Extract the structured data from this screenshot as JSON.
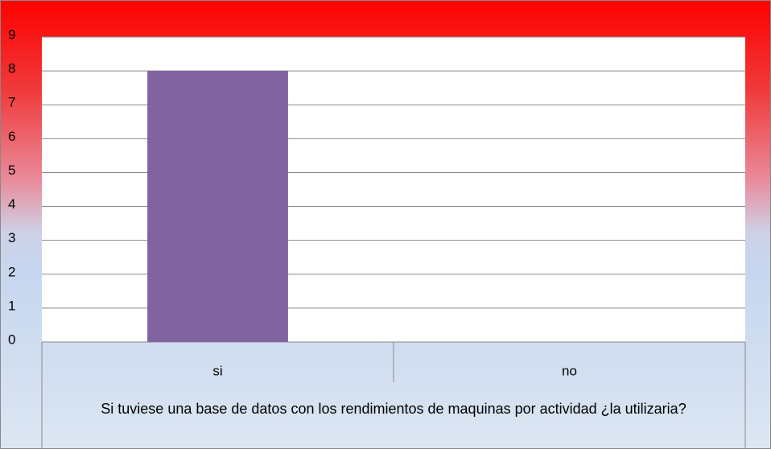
{
  "chart_data": {
    "type": "bar",
    "x_label": "Si tuviese una base de datos con los rendimientos de maquinas por actividad ¿la utilizaria?",
    "categories": [
      "si",
      "no"
    ],
    "values": [
      8,
      0
    ],
    "color": "#8064a2",
    "ylim": [
      0,
      9
    ],
    "yticks": [
      0,
      1,
      2,
      3,
      4,
      5,
      6,
      7,
      8,
      9
    ],
    "grid": true
  }
}
